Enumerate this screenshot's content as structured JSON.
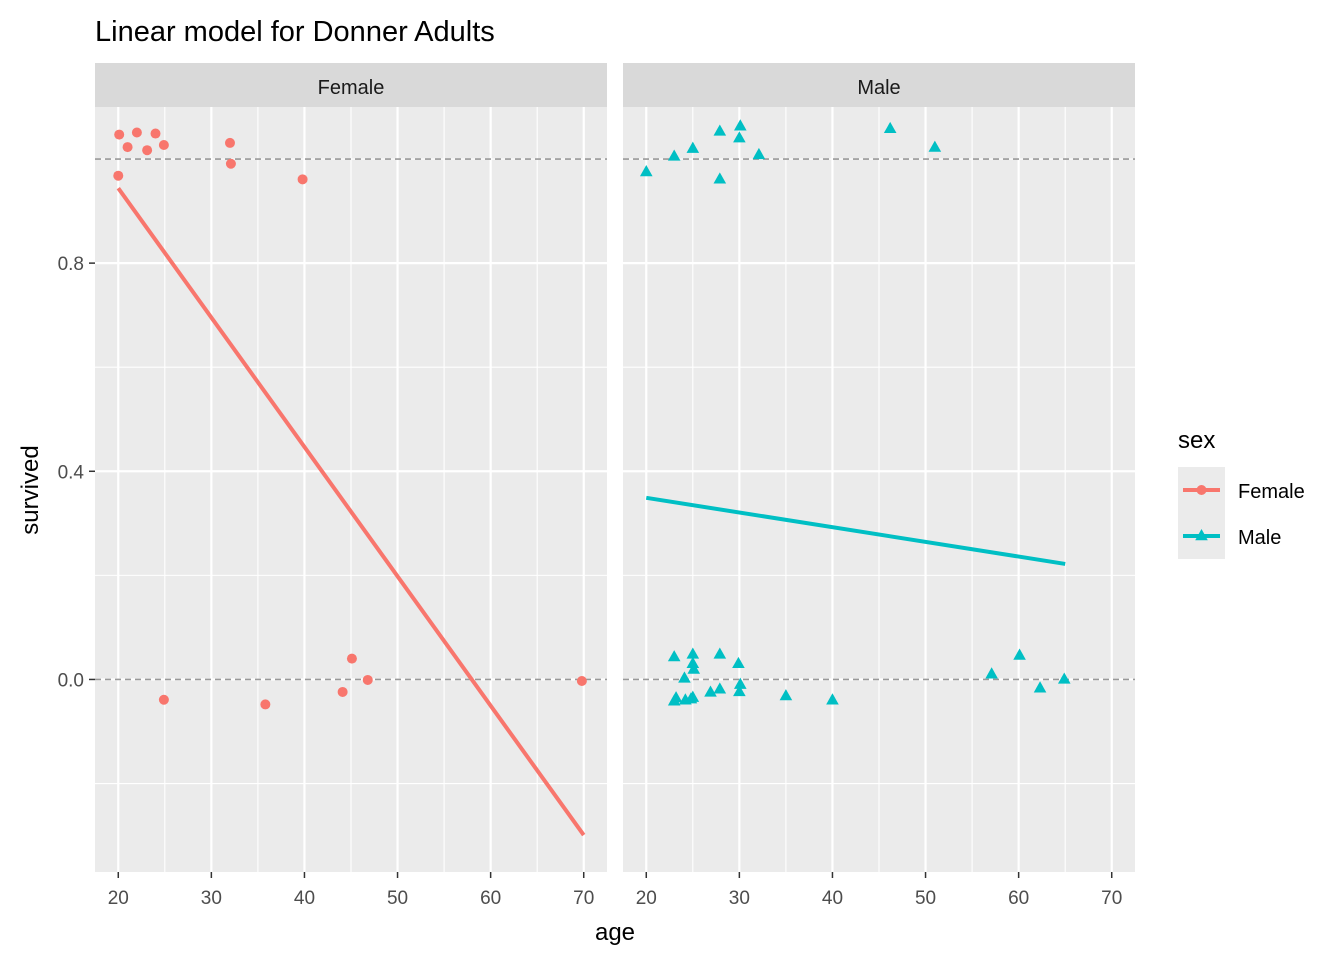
{
  "chart_data": {
    "type": "scatter",
    "title": "Linear model for Donner Adults",
    "xlabel": "age",
    "ylabel": "survived",
    "xlim": [
      17.5,
      72.5
    ],
    "ylim": [
      -0.37,
      1.1
    ],
    "x_ticks": [
      20,
      30,
      40,
      50,
      60,
      70
    ],
    "x_tick_labels": [
      "20",
      "30",
      "40",
      "50",
      "60",
      "70"
    ],
    "y_ticks": [
      0.0,
      0.4,
      0.8
    ],
    "y_tick_labels": [
      "0.0",
      "0.4",
      "0.8"
    ],
    "reference_lines": [
      0,
      1
    ],
    "grid": true,
    "legend": {
      "title": "sex",
      "position": "right",
      "entries": [
        {
          "label": "Female",
          "color": "#F8766D",
          "shape": "circle"
        },
        {
          "label": "Male",
          "color": "#00BFC4",
          "shape": "triangle"
        }
      ]
    },
    "facets": [
      {
        "label": "Female",
        "series": "Female",
        "color": "#F8766D",
        "shape": "circle",
        "points": [
          {
            "x": 20.1,
            "y": 1.047
          },
          {
            "x": 21.0,
            "y": 1.023
          },
          {
            "x": 22.0,
            "y": 1.051
          },
          {
            "x": 23.1,
            "y": 1.017
          },
          {
            "x": 24.0,
            "y": 1.049
          },
          {
            "x": 24.9,
            "y": 1.027
          },
          {
            "x": 32.0,
            "y": 1.031
          },
          {
            "x": 32.1,
            "y": 0.991
          },
          {
            "x": 20.0,
            "y": 0.968
          },
          {
            "x": 39.8,
            "y": 0.961
          },
          {
            "x": 24.9,
            "y": -0.039
          },
          {
            "x": 35.8,
            "y": -0.048
          },
          {
            "x": 44.1,
            "y": -0.024
          },
          {
            "x": 45.1,
            "y": 0.04
          },
          {
            "x": 46.8,
            "y": -0.001
          },
          {
            "x": 69.8,
            "y": -0.003
          }
        ],
        "fit": {
          "x": [
            20,
            70
          ],
          "y": [
            0.944,
            -0.299
          ]
        }
      },
      {
        "label": "Male",
        "series": "Male",
        "color": "#00BFC4",
        "shape": "triangle",
        "points": [
          {
            "x": 20.0,
            "y": 0.975
          },
          {
            "x": 23.0,
            "y": 1.005
          },
          {
            "x": 25.0,
            "y": 1.02
          },
          {
            "x": 27.9,
            "y": 1.053
          },
          {
            "x": 27.9,
            "y": 0.961
          },
          {
            "x": 30.1,
            "y": 1.063
          },
          {
            "x": 30.0,
            "y": 1.04
          },
          {
            "x": 32.1,
            "y": 1.008
          },
          {
            "x": 46.2,
            "y": 1.058
          },
          {
            "x": 51.0,
            "y": 1.022
          },
          {
            "x": 23.0,
            "y": 0.043
          },
          {
            "x": 23.0,
            "y": -0.042
          },
          {
            "x": 23.2,
            "y": -0.036
          },
          {
            "x": 24.1,
            "y": 0.002
          },
          {
            "x": 24.2,
            "y": -0.04
          },
          {
            "x": 24.8,
            "y": -0.038
          },
          {
            "x": 25.0,
            "y": 0.048
          },
          {
            "x": 25.0,
            "y": 0.03
          },
          {
            "x": 25.1,
            "y": 0.019
          },
          {
            "x": 25.0,
            "y": -0.035
          },
          {
            "x": 26.9,
            "y": -0.025
          },
          {
            "x": 27.9,
            "y": 0.048
          },
          {
            "x": 27.9,
            "y": -0.019
          },
          {
            "x": 29.9,
            "y": 0.03
          },
          {
            "x": 30.1,
            "y": -0.01
          },
          {
            "x": 30.0,
            "y": -0.024
          },
          {
            "x": 35.0,
            "y": -0.032
          },
          {
            "x": 40.0,
            "y": -0.04
          },
          {
            "x": 57.1,
            "y": 0.01
          },
          {
            "x": 60.1,
            "y": 0.046
          },
          {
            "x": 62.3,
            "y": -0.017
          },
          {
            "x": 64.9,
            "y": 0.0
          }
        ],
        "fit": {
          "x": [
            20,
            65
          ],
          "y": [
            0.349,
            0.222
          ]
        }
      }
    ]
  },
  "colors": {
    "panel_background": "#EBEBEB",
    "strip_background": "#D9D9D9",
    "grid_major": "#FFFFFF",
    "reference_line": "#999999",
    "tick_label": "#4D4D4D"
  }
}
